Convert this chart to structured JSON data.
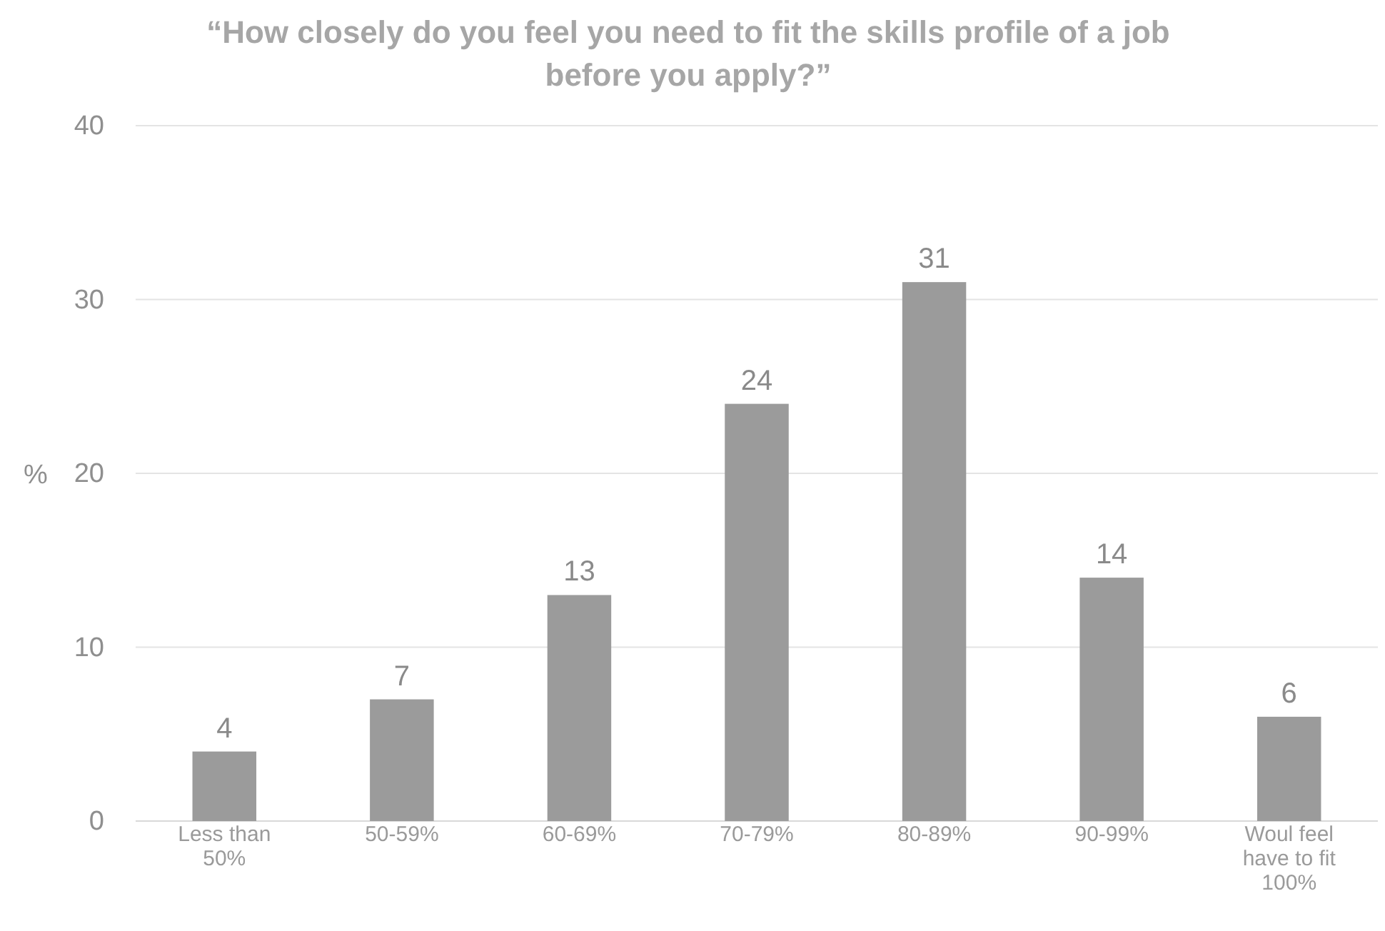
{
  "chart_data": {
    "type": "bar",
    "title": "“How closely do you feel you need to fit the skills profile of a job before you apply?”",
    "ylabel": "%",
    "categories": [
      "Less than 50%",
      "50-59%",
      "60-69%",
      "70-79%",
      "80-89%",
      "90-99%",
      "Woul feel have to fit 100%"
    ],
    "values": [
      4,
      7,
      13,
      24,
      31,
      14,
      6
    ],
    "color": "#9b9b9b",
    "ylim": [
      0,
      40
    ],
    "yticks": [
      0,
      10,
      20,
      30,
      40
    ],
    "grid": "y",
    "data_labels": true
  }
}
